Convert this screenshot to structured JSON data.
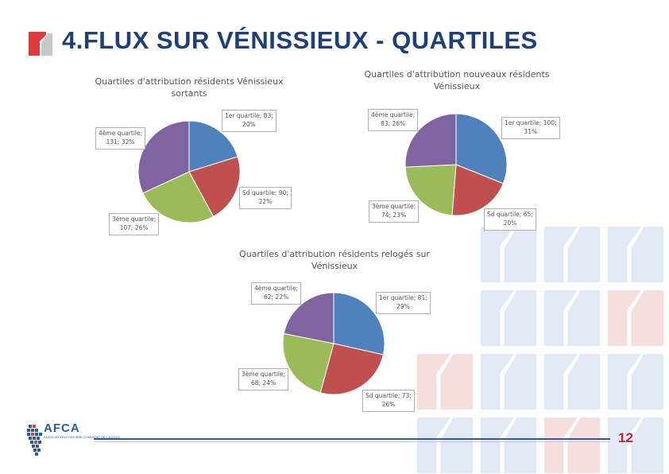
{
  "header": {
    "title": "4.FLUX SUR VÉNISSIEUX - QUARTILES"
  },
  "footer": {
    "page_number": "12"
  },
  "logo": {
    "text": "AFCA",
    "subtitle": "ASSOCIATION FONCIÈRE COMMUNE DE L'AGGLO"
  },
  "colors": {
    "title": "#1f3f7a",
    "accent_red": "#c8232c",
    "q1": "#4f81bd",
    "q2": "#c0504d",
    "q3": "#9bbb59",
    "q4": "#8064a2"
  },
  "chart_data": [
    {
      "type": "pie",
      "title": "Quartiles d'attribution résidents Vénissieux sortants",
      "title_lines": [
        "Quartiles d'attribution résidents Vénissieux",
        "sortants"
      ],
      "categories": [
        "1er quartile",
        "Sd quartile",
        "3ème quartile",
        "4ème quartile"
      ],
      "values": [
        83,
        90,
        107,
        131
      ],
      "percents": [
        "20%",
        "22%",
        "26%",
        "32%"
      ],
      "labels": [
        {
          "l1": "1er quartile; 83;",
          "l2": "20%"
        },
        {
          "l1": "Sd quartile; 90;",
          "l2": "22%"
        },
        {
          "l1": "3ème quartile;",
          "l2": "107; 26%"
        },
        {
          "l1": "4ème quartile;",
          "l2": "131; 32%"
        }
      ]
    },
    {
      "type": "pie",
      "title": "Quartiles d'attribution nouveaux résidents Vénissieux",
      "title_lines": [
        "Quartiles d'attribution nouveaux résidents",
        "Vénissieux"
      ],
      "categories": [
        "1er quartile",
        "Sd quartile",
        "3ème quartile",
        "4ème quartile"
      ],
      "values": [
        100,
        65,
        74,
        83
      ],
      "percents": [
        "31%",
        "20%",
        "23%",
        "26%"
      ],
      "labels": [
        {
          "l1": "1er quartile; 100;",
          "l2": "31%"
        },
        {
          "l1": "Sd quartile; 65;",
          "l2": "20%"
        },
        {
          "l1": "3ème quartile;",
          "l2": "74; 23%"
        },
        {
          "l1": "4ème quartile;",
          "l2": "83; 26%"
        }
      ]
    },
    {
      "type": "pie",
      "title": "Quartiles d'attribution résidents relogés sur Vénissieux",
      "title_lines": [
        "Quartiles d'attribution résidents relogés sur",
        "Vénissieux"
      ],
      "categories": [
        "1er quartile",
        "Sd quartile",
        "3ème quartile",
        "4ème quartile"
      ],
      "values": [
        81,
        73,
        68,
        62
      ],
      "percents": [
        "29%",
        "26%",
        "24%",
        "22%"
      ],
      "labels": [
        {
          "l1": "1er quartile; 81;",
          "l2": "29%"
        },
        {
          "l1": "Sd quartile; 73;",
          "l2": "26%"
        },
        {
          "l1": "3ème quartile;",
          "l2": "68; 24%"
        },
        {
          "l1": "4ème quartile;",
          "l2": "62; 22%"
        }
      ]
    }
  ]
}
